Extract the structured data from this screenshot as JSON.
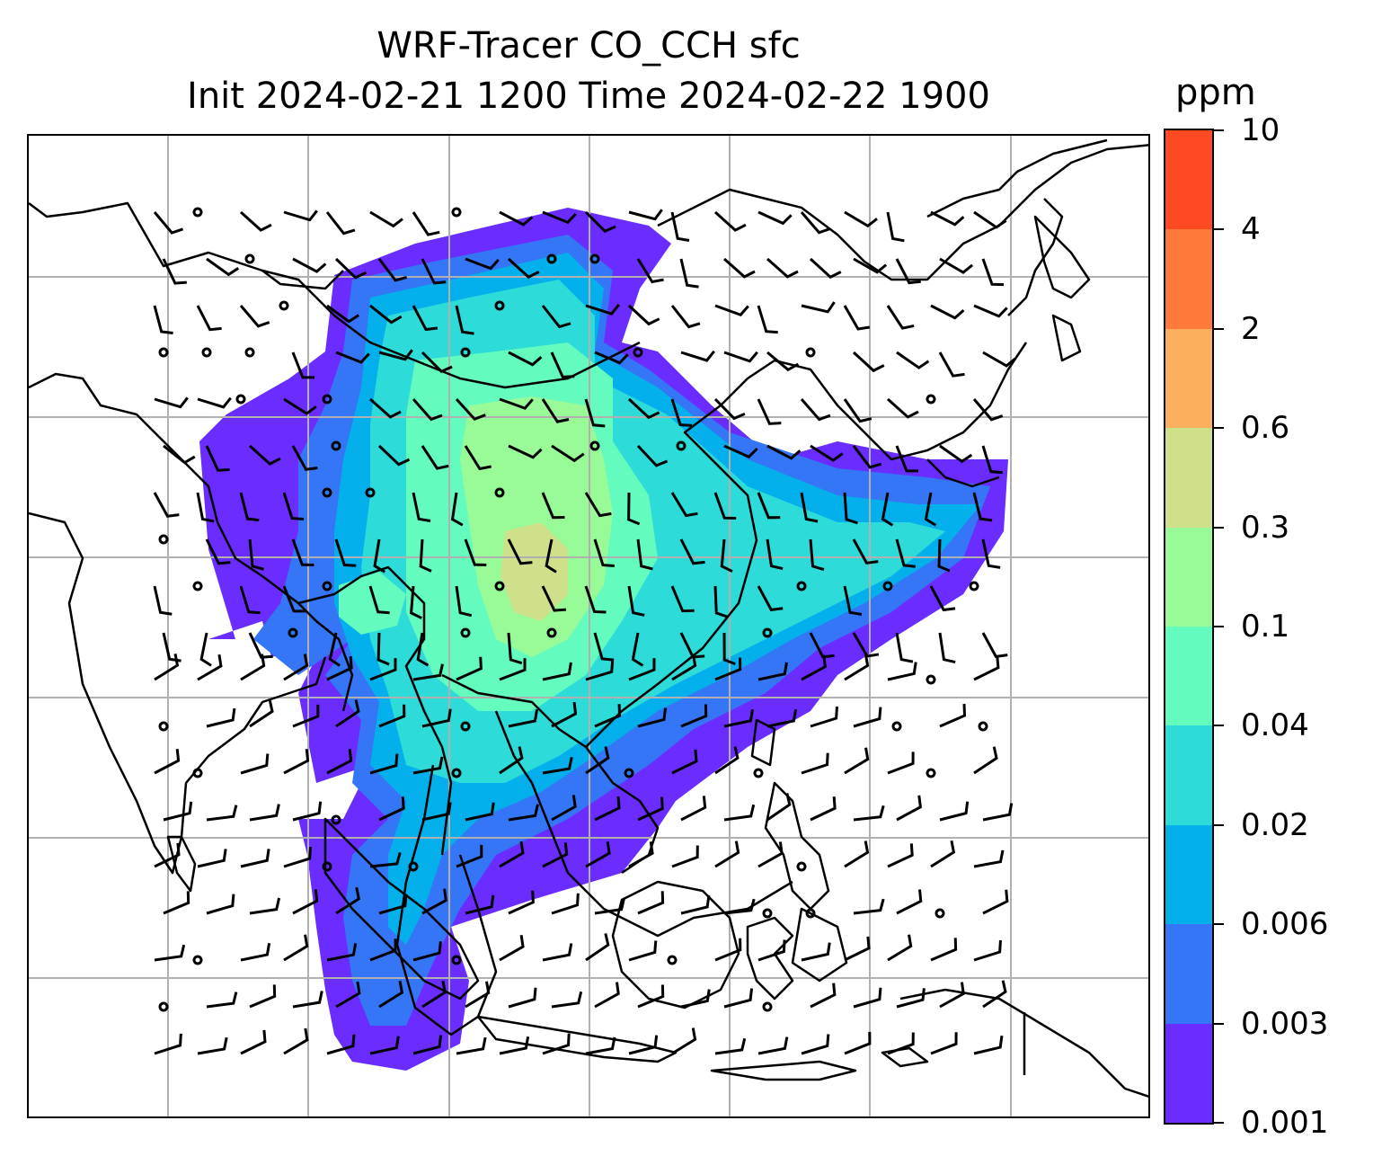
{
  "title": {
    "line1": "WRF-Tracer CO_CCH sfc",
    "line2": "Init 2024-02-21 1200 Time 2024-02-22 1900"
  },
  "colorbar": {
    "units": "ppm",
    "levels": [
      "0.001",
      "0.003",
      "0.006",
      "0.02",
      "0.04",
      "0.1",
      "0.3",
      "0.6",
      "2",
      "4",
      "10"
    ],
    "colors": [
      "#6a2cff",
      "#3476f6",
      "#04b0ec",
      "#2ddcd8",
      "#64fbbe",
      "#98fb98",
      "#cfe08a",
      "#fdae5e",
      "#fd7a3a",
      "#fd4a22",
      "#ff2a14"
    ]
  },
  "map": {
    "field": "CO_CCH surface concentration",
    "gridlines": true,
    "overlay": "wind barbs",
    "coastline_color": "#000000"
  }
}
